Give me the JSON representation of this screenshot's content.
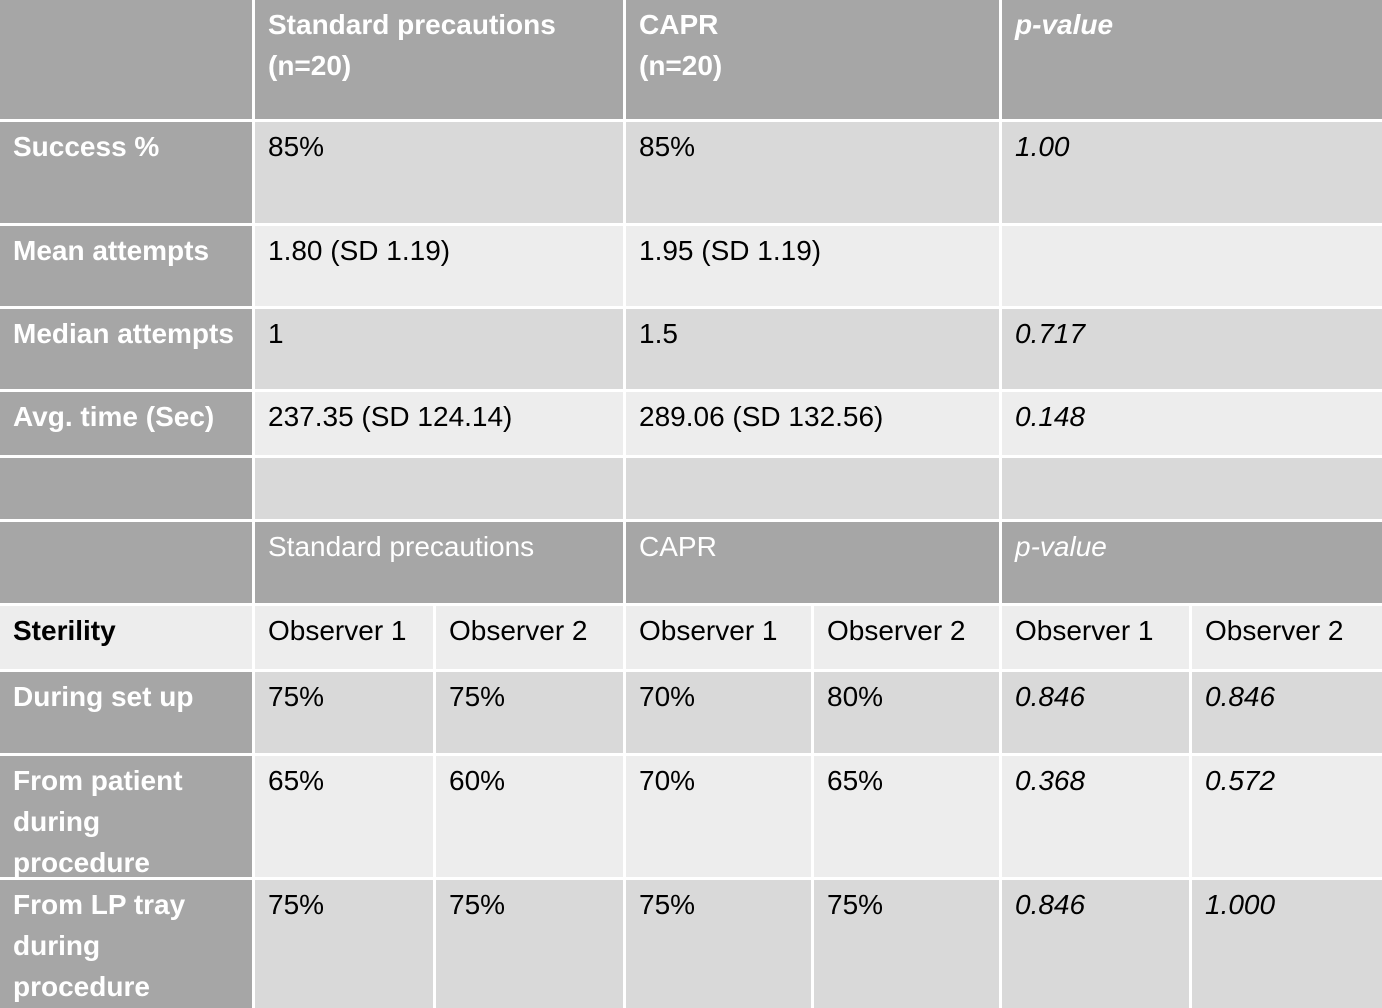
{
  "header": {
    "col1": "Standard precautions",
    "col1_n": "(n=20)",
    "col2": "CAPR",
    "col2_n": "(n=20)",
    "col3": "p-value"
  },
  "rows": [
    {
      "label": "Success %",
      "std": "85%",
      "capr": "85%",
      "p": "1.00"
    },
    {
      "label": "Mean attempts",
      "std": "1.80 (SD 1.19)",
      "capr": "1.95 (SD 1.19)",
      "p": ""
    },
    {
      "label": "Median attempts",
      "std": "1",
      "capr": "1.5",
      "p": "0.717"
    },
    {
      "label": "Avg. time (Sec)",
      "std": "237.35 (SD 124.14)",
      "capr": "289.06 (SD 132.56)",
      "p": "0.148"
    }
  ],
  "header2": {
    "col1": "Standard precautions",
    "col2": "CAPR",
    "col3": "p-value"
  },
  "sterility": {
    "label": "Sterility",
    "observers": [
      "Observer 1",
      "Observer 2",
      "Observer 1",
      "Observer 2",
      "Observer 1",
      "Observer 2"
    ],
    "rows": [
      {
        "label": "During set up",
        "values": [
          "75%",
          "75%",
          "70%",
          "80%",
          "0.846",
          "0.846"
        ]
      },
      {
        "label": "From patient during procedure",
        "values": [
          "65%",
          "60%",
          "70%",
          "65%",
          "0.368",
          "0.572"
        ]
      },
      {
        "label": "From LP tray during procedure",
        "values": [
          "75%",
          "75%",
          "75%",
          "75%",
          "0.846",
          "1.000"
        ]
      }
    ]
  }
}
